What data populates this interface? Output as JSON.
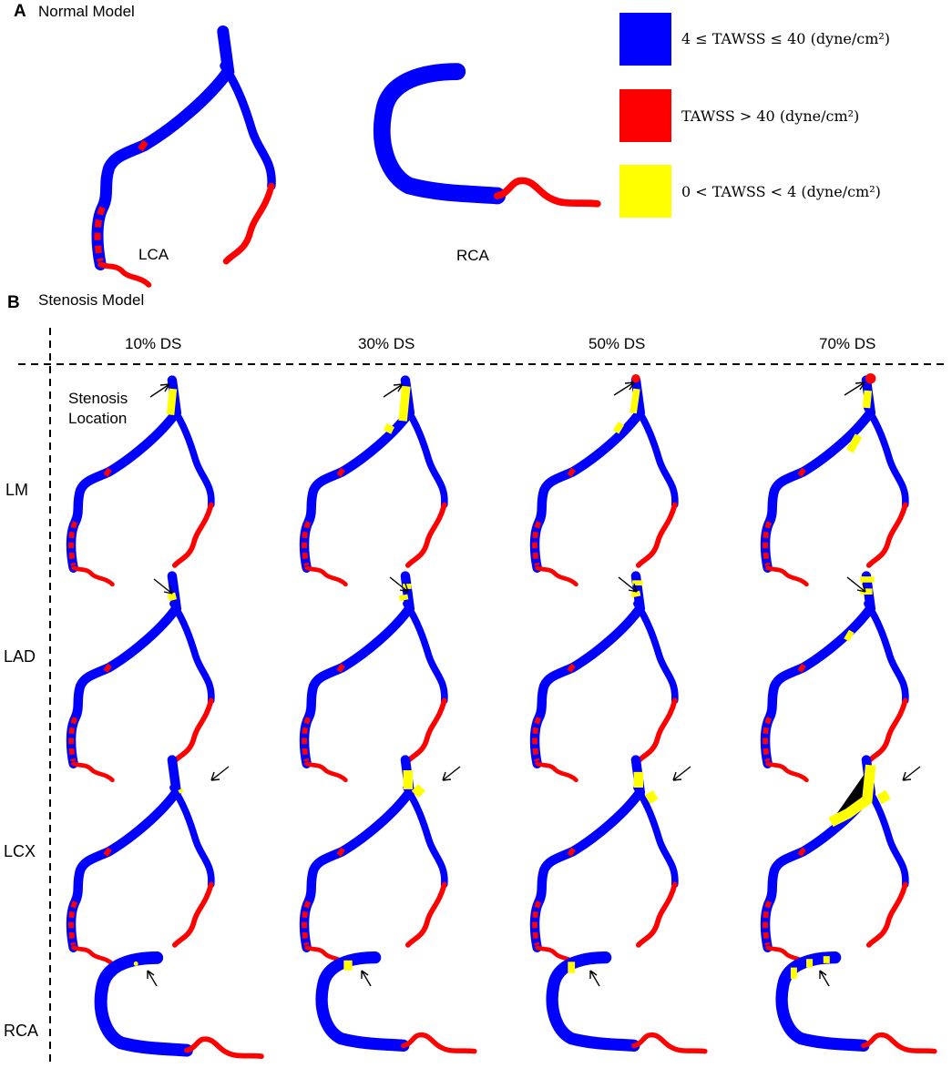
{
  "panel_a": {
    "letter": "A",
    "title": "Normal Model",
    "vessel_labels": [
      "LCA",
      "RCA"
    ]
  },
  "legend": [
    {
      "label": "4 ≤ TAWSS ≤ 40 (dyne/cm²)",
      "color": "#0000ff"
    },
    {
      "label": "TAWSS > 40 (dyne/cm²)",
      "color": "#ff0000"
    },
    {
      "label": "0 < TAWSS < 4 (dyne/cm²)",
      "color": "#ffff00"
    }
  ],
  "panel_b": {
    "letter": "B",
    "title": "Stenosis Model",
    "columns": [
      "10% DS",
      "30% DS",
      "50% DS",
      "70% DS"
    ],
    "rows": [
      "LM",
      "LAD",
      "LCX",
      "RCA"
    ],
    "annotation": [
      "Stenosis",
      "Location"
    ]
  },
  "colors": {
    "wall_normal": "#0000ff",
    "wall_high": "#ff0000",
    "wall_low": "#ffff00"
  }
}
